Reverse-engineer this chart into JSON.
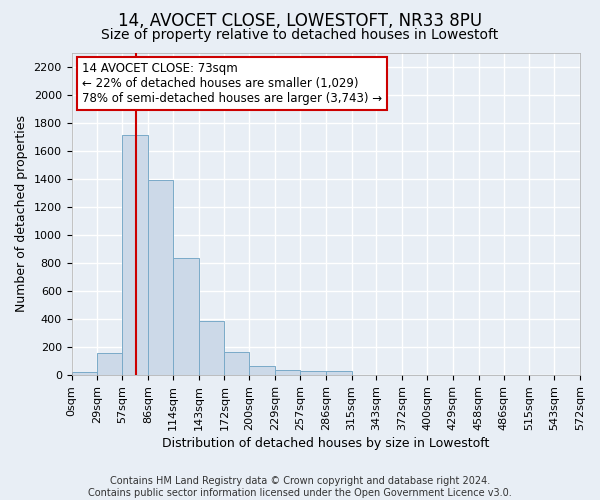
{
  "title": "14, AVOCET CLOSE, LOWESTOFT, NR33 8PU",
  "subtitle": "Size of property relative to detached houses in Lowestoft",
  "xlabel": "Distribution of detached houses by size in Lowestoft",
  "ylabel": "Number of detached properties",
  "footer_line1": "Contains HM Land Registry data © Crown copyright and database right 2024.",
  "footer_line2": "Contains public sector information licensed under the Open Government Licence v3.0.",
  "bar_edges": [
    0,
    29,
    57,
    86,
    114,
    143,
    172,
    200,
    229,
    257,
    286,
    315,
    343,
    372,
    400,
    429,
    458,
    486,
    515,
    543,
    572
  ],
  "bar_heights": [
    20,
    155,
    1710,
    1390,
    835,
    385,
    165,
    65,
    38,
    28,
    28,
    0,
    0,
    0,
    0,
    0,
    0,
    0,
    0,
    0
  ],
  "bar_color": "#ccd9e8",
  "bar_edge_color": "#7aaac8",
  "property_size": 73,
  "vline_color": "#cc0000",
  "annotation_line1": "14 AVOCET CLOSE: 73sqm",
  "annotation_line2": "← 22% of detached houses are smaller (1,029)",
  "annotation_line3": "78% of semi-detached houses are larger (3,743) →",
  "annotation_box_color": "#cc0000",
  "ylim": [
    0,
    2300
  ],
  "yticks": [
    0,
    200,
    400,
    600,
    800,
    1000,
    1200,
    1400,
    1600,
    1800,
    2000,
    2200
  ],
  "bg_color": "#e8eef5",
  "plot_bg_color": "#e8eef5",
  "grid_color": "#ffffff",
  "title_fontsize": 12,
  "subtitle_fontsize": 10,
  "tick_label_fontsize": 8,
  "ylabel_fontsize": 9,
  "xlabel_fontsize": 9,
  "footer_fontsize": 7,
  "annotation_fontsize": 8.5
}
